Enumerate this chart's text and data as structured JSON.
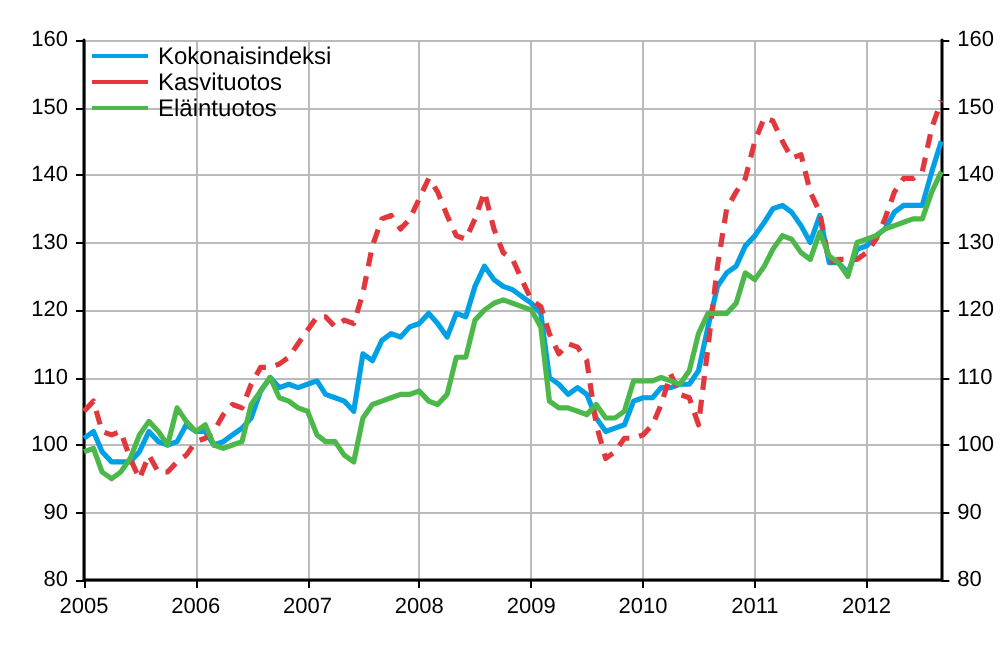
{
  "chart_data": {
    "type": "line",
    "x": [
      "2005-01",
      "2005-02",
      "2005-03",
      "2005-04",
      "2005-05",
      "2005-06",
      "2005-07",
      "2005-08",
      "2005-09",
      "2005-10",
      "2005-11",
      "2005-12",
      "2006-01",
      "2006-02",
      "2006-03",
      "2006-04",
      "2006-05",
      "2006-06",
      "2006-07",
      "2006-08",
      "2006-09",
      "2006-10",
      "2006-11",
      "2006-12",
      "2007-01",
      "2007-02",
      "2007-03",
      "2007-04",
      "2007-05",
      "2007-06",
      "2007-07",
      "2007-08",
      "2007-09",
      "2007-10",
      "2007-11",
      "2007-12",
      "2008-01",
      "2008-02",
      "2008-03",
      "2008-04",
      "2008-05",
      "2008-06",
      "2008-07",
      "2008-08",
      "2008-09",
      "2008-10",
      "2008-11",
      "2008-12",
      "2009-01",
      "2009-02",
      "2009-03",
      "2009-04",
      "2009-05",
      "2009-06",
      "2009-07",
      "2009-08",
      "2009-09",
      "2009-10",
      "2009-11",
      "2009-12",
      "2010-01",
      "2010-02",
      "2010-03",
      "2010-04",
      "2010-05",
      "2010-06",
      "2010-07",
      "2010-08",
      "2010-09",
      "2010-10",
      "2010-11",
      "2010-12",
      "2011-01",
      "2011-02",
      "2011-03",
      "2011-04",
      "2011-05",
      "2011-06",
      "2011-07",
      "2011-08",
      "2011-09",
      "2011-10",
      "2011-11",
      "2011-12",
      "2012-01",
      "2012-02",
      "2012-03",
      "2012-04",
      "2012-05",
      "2012-06",
      "2012-07",
      "2012-08",
      "2012-09"
    ],
    "series": [
      {
        "name": "Kokonaisindeksi",
        "color": "#00a0e6",
        "line_style": "solid",
        "values": [
          101,
          102,
          99,
          97.5,
          97.5,
          97.5,
          99,
          102,
          100.5,
          100,
          100.5,
          103,
          102,
          102,
          100,
          100.5,
          101.5,
          102.5,
          104,
          108,
          110,
          108.5,
          109,
          108.5,
          109,
          109.5,
          107.5,
          107,
          106.5,
          105,
          113.5,
          112.5,
          115.5,
          116.5,
          116,
          117.5,
          118,
          119.5,
          118,
          116,
          119.5,
          119,
          123.5,
          126.5,
          124.5,
          123.5,
          123,
          122,
          121,
          119.5,
          110,
          109,
          107.5,
          108.5,
          107.5,
          104,
          102,
          102.5,
          103,
          106.5,
          107,
          107,
          108.5,
          108.5,
          109,
          109,
          111,
          117.5,
          123.5,
          125.5,
          126.5,
          129.5,
          131,
          133,
          135,
          135.5,
          134.5,
          132.5,
          130,
          134,
          127,
          127,
          125.5,
          129,
          129.5,
          131,
          132,
          134.5,
          135.5,
          135.5,
          135.5,
          140.5,
          145
        ]
      },
      {
        "name": "Kasvituotos",
        "color": "#e0383c",
        "line_style": "dashed",
        "values": [
          105,
          106.5,
          102,
          101.5,
          102,
          98,
          95,
          98.5,
          96,
          96,
          97.5,
          98.5,
          100.5,
          101,
          102,
          104.5,
          106,
          105.5,
          109,
          111.5,
          111.5,
          112,
          113,
          115,
          117,
          119,
          119,
          117.5,
          118.5,
          118,
          122.5,
          129.5,
          133.5,
          134,
          132,
          133.5,
          136.5,
          139.5,
          137.5,
          134,
          131,
          130.5,
          133.5,
          137.5,
          132,
          128.5,
          127.5,
          124.5,
          121.5,
          120.5,
          116.5,
          113.5,
          115,
          114.5,
          112.5,
          103,
          98,
          99,
          101,
          101,
          101.5,
          103,
          106,
          110.5,
          107.5,
          107,
          103,
          114.5,
          126.5,
          135,
          137.5,
          139.5,
          145,
          148.5,
          148,
          145,
          142.5,
          143,
          137.5,
          134.5,
          127,
          127.5,
          127.5,
          127.5,
          128.5,
          130.5,
          133.5,
          137.5,
          139.5,
          139.5,
          140.5,
          147,
          151
        ]
      },
      {
        "name": "Eläintuotos",
        "color": "#4cb84a",
        "line_style": "solid",
        "values": [
          99,
          99.5,
          96,
          95,
          96,
          98,
          101.5,
          103.5,
          102,
          100,
          105.5,
          103.5,
          102,
          103,
          100,
          99.5,
          100,
          100.5,
          106,
          108,
          110,
          107,
          106.5,
          105.5,
          105,
          101.5,
          100.5,
          100.5,
          98.5,
          97.5,
          104,
          106,
          106.5,
          107,
          107.5,
          107.5,
          108,
          106.5,
          106,
          107.5,
          113,
          113,
          118.5,
          120,
          121,
          121.5,
          121,
          120.5,
          120,
          117.5,
          106.5,
          105.5,
          105.5,
          105,
          104.5,
          106,
          104,
          104,
          105,
          109.5,
          109.5,
          109.5,
          110,
          109.5,
          109,
          111,
          116.5,
          119.5,
          119.5,
          119.5,
          121,
          125.5,
          124.5,
          126.5,
          129,
          131,
          130.5,
          128.5,
          127.5,
          131.5,
          128,
          127,
          125,
          130,
          130.5,
          131,
          132,
          132.5,
          133,
          133.5,
          133.5,
          137.5,
          140.5
        ]
      }
    ],
    "xlim": [
      "2005-01",
      "2012-09"
    ],
    "xticks": [
      "2005",
      "2006",
      "2007",
      "2008",
      "2009",
      "2010",
      "2011",
      "2012"
    ],
    "ylim": [
      80,
      160
    ],
    "yticks": [
      80,
      90,
      100,
      110,
      120,
      130,
      140,
      150,
      160
    ],
    "y2lim": [
      80,
      160
    ],
    "y2ticks": [
      80,
      90,
      100,
      110,
      120,
      130,
      140,
      150,
      160
    ],
    "grid": true,
    "legend": "top left",
    "marker": "none"
  }
}
